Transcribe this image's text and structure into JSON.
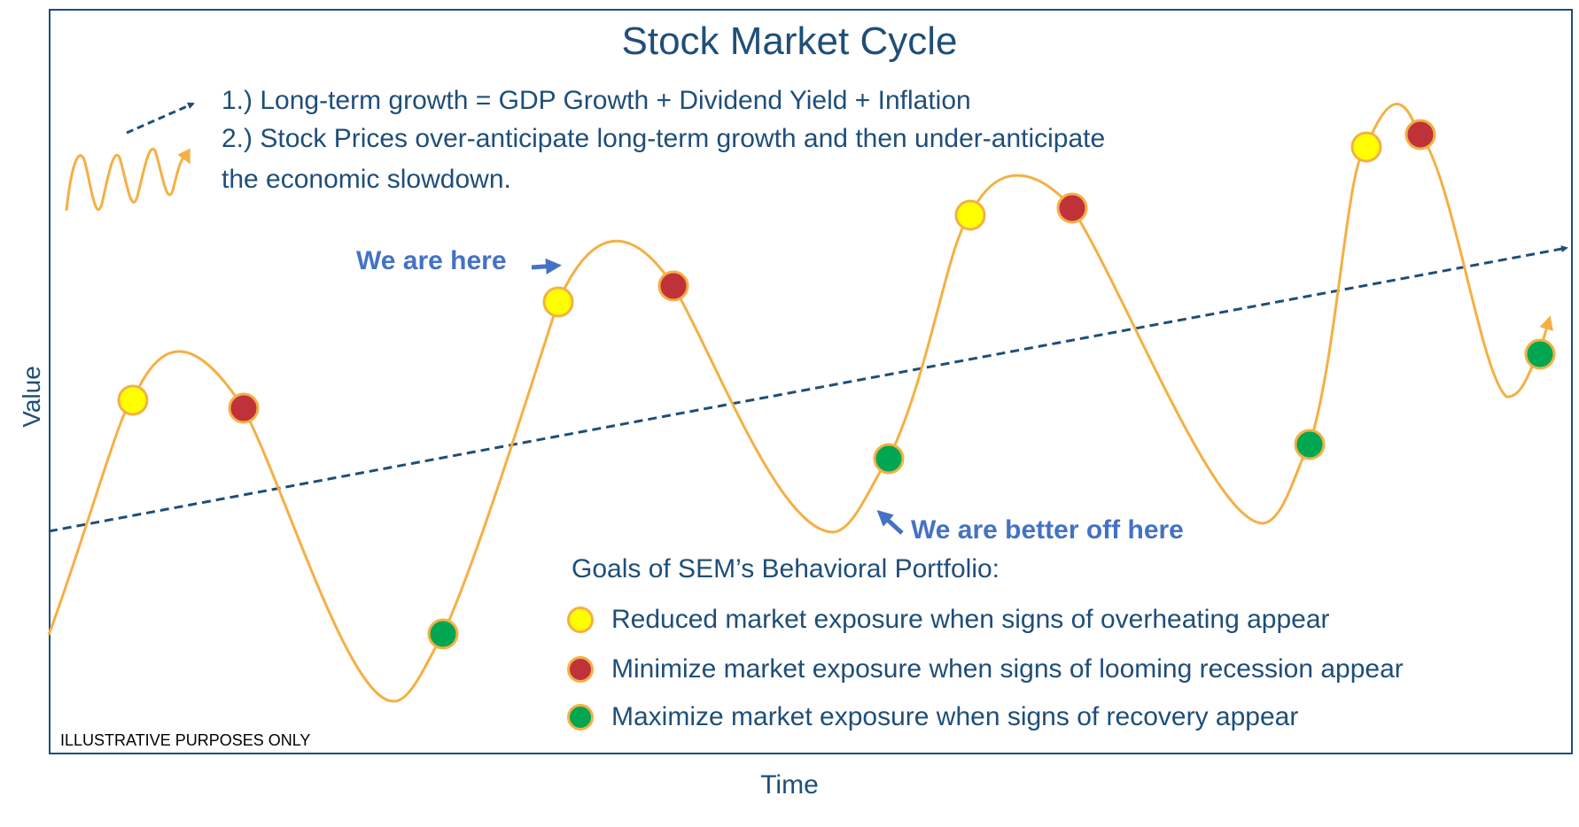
{
  "title": "Stock Market Cycle",
  "notes": [
    "1.) Long-term growth = GDP Growth + Dividend Yield + Inflation",
    "2.) Stock Prices over-anticipate long-term growth and then under-anticipate",
    "the economic slowdown."
  ],
  "axes": {
    "x_label": "Time",
    "y_label": "Value"
  },
  "callouts": {
    "here": "We are here",
    "better": "We are better off here"
  },
  "legend": {
    "title": "Goals of SEM’s Behavioral Portfolio:",
    "items": [
      {
        "color": "#FFFF00",
        "text": "Reduced market exposure when signs of overheating appear"
      },
      {
        "color": "#C0323A",
        "text": "Minimize market exposure when signs of looming recession appear"
      },
      {
        "color": "#00A651",
        "text": "Maximize market exposure when signs of recovery appear"
      }
    ]
  },
  "disclaimer": "ILLUSTRATIVE PURPOSES ONLY",
  "colors": {
    "curve": "#F4B044",
    "trend": "#1F4E79",
    "text": "#1F4E79",
    "callout": "#4472C4"
  }
}
